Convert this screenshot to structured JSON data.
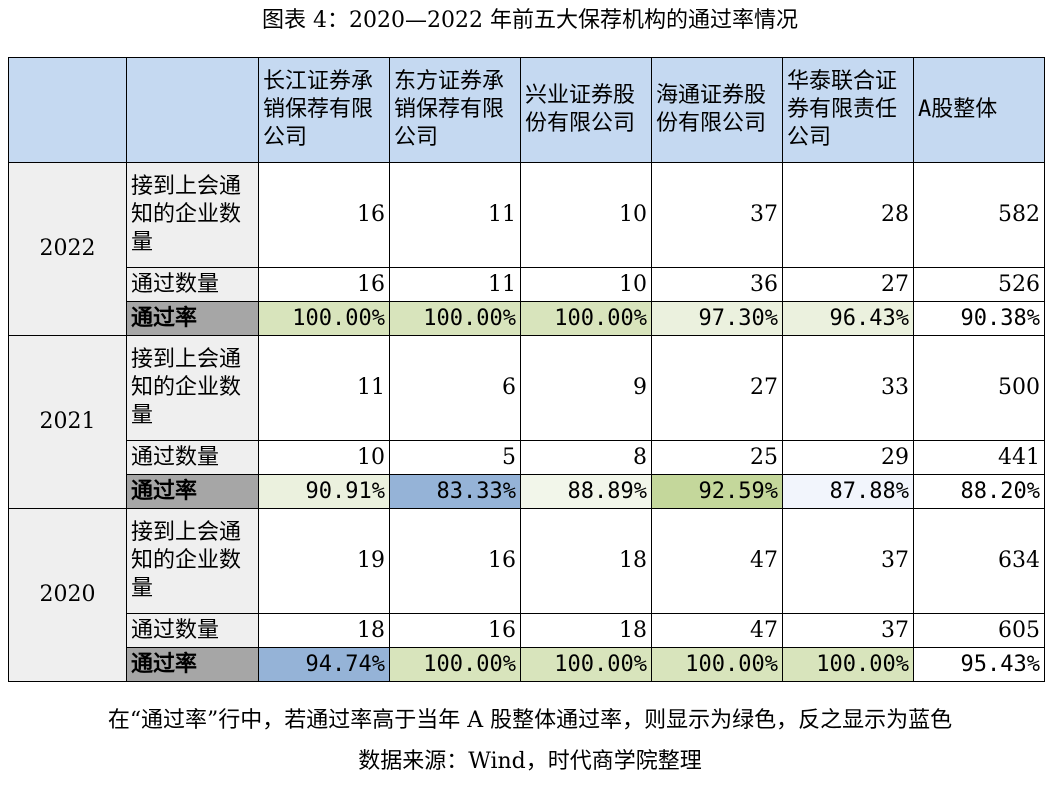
{
  "title": "图表 4：2020—2022 年前五大保荐机构的通过率情况",
  "colors": {
    "header": "#c5d9f1",
    "green_strong": "#c4d79b",
    "green_light": "#d8e4bc",
    "blue_strong": "#95b3d7",
    "blue_light": "#f2f5fc",
    "label_gray": "#a6a6a6",
    "label_light": "#efefef"
  },
  "header": {
    "institutions": [
      "长江证券承销保荐有限公司",
      "东方证券承销保荐有限公司",
      "兴业证券股份有限公司",
      "海通证券股份有限公司",
      "华泰联合证券有限责任公司"
    ],
    "overall": "A股整体"
  },
  "row_labels": {
    "notified": "接到上会通知的企业数量",
    "passed": "通过数量",
    "rate": "通过率"
  },
  "years": [
    {
      "year": "2022",
      "notified": [
        "16",
        "11",
        "10",
        "37",
        "28",
        "582"
      ],
      "passed": [
        "16",
        "11",
        "10",
        "36",
        "27",
        "526"
      ],
      "rate": [
        "100.00%",
        "100.00%",
        "100.00%",
        "97.30%",
        "96.43%",
        "90.38%"
      ],
      "rate_colors": [
        "#d8e4bc",
        "#d8e4bc",
        "#d8e4bc",
        "#ebf1de",
        "#ebf1de",
        "#ffffff"
      ]
    },
    {
      "year": "2021",
      "notified": [
        "11",
        "6",
        "9",
        "27",
        "33",
        "500"
      ],
      "passed": [
        "10",
        "5",
        "8",
        "25",
        "29",
        "441"
      ],
      "rate": [
        "90.91%",
        "83.33%",
        "88.89%",
        "92.59%",
        "87.88%",
        "88.20%"
      ],
      "rate_colors": [
        "#ebf1de",
        "#95b3d7",
        "#f2f6ea",
        "#c4d79b",
        "#f2f5fc",
        "#ffffff"
      ]
    },
    {
      "year": "2020",
      "notified": [
        "19",
        "16",
        "18",
        "47",
        "37",
        "634"
      ],
      "passed": [
        "18",
        "16",
        "18",
        "47",
        "37",
        "605"
      ],
      "rate": [
        "94.74%",
        "100.00%",
        "100.00%",
        "100.00%",
        "100.00%",
        "95.43%"
      ],
      "rate_colors": [
        "#95b3d7",
        "#d8e4bc",
        "#d8e4bc",
        "#d8e4bc",
        "#d8e4bc",
        "#ffffff"
      ]
    }
  ],
  "footnote": "在“通过率”行中，若通过率高于当年 A 股整体通过率，则显示为绿色，反之显示为蓝色",
  "source": "数据来源：Wind，时代商学院整理"
}
